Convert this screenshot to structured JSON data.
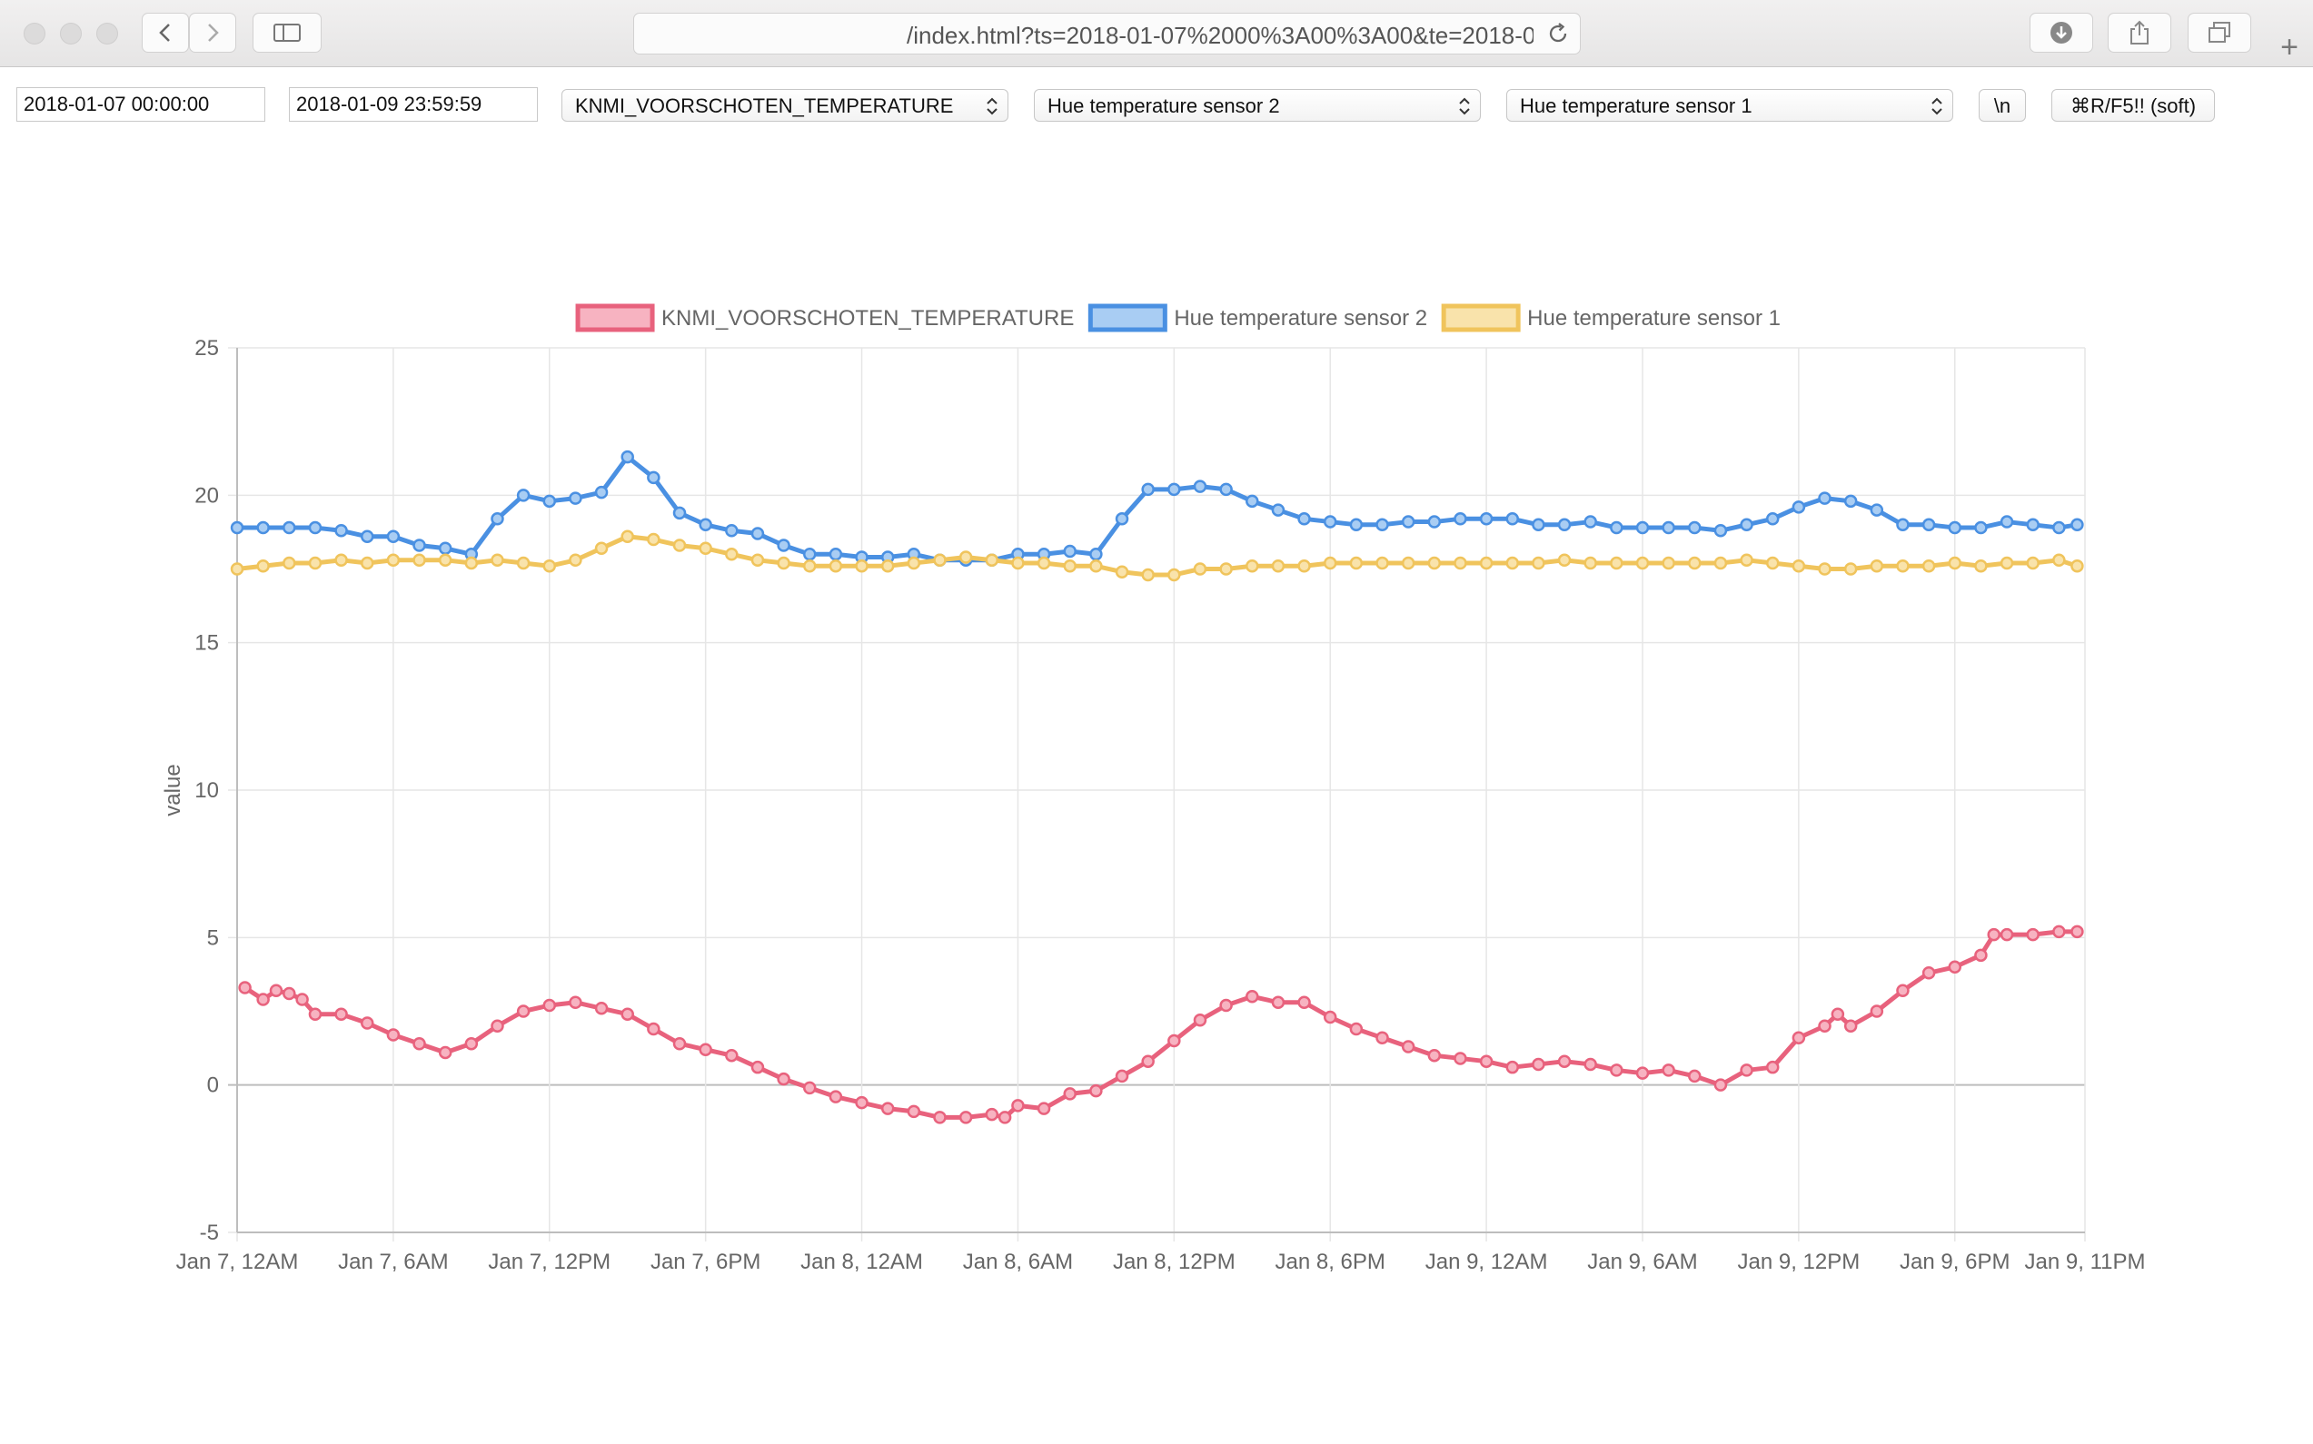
{
  "browser": {
    "url": "/index.html?ts=2018-01-07%2000%3A00%3A00&te=2018-0",
    "icons": [
      "back-icon",
      "forward-icon",
      "sidebar-icon",
      "reload-icon",
      "download-icon",
      "share-icon",
      "tabs-icon",
      "plus-icon"
    ],
    "new_tab_label": "+"
  },
  "controls": {
    "start_time": "2018-01-07 00:00:00",
    "end_time": "2018-01-09 23:59:59",
    "select1": "KNMI_VOORSCHOTEN_TEMPERATURE",
    "select2": "Hue temperature sensor 2",
    "select3": "Hue temperature sensor 1",
    "newline_button": "\\n",
    "refresh_button": "⌘R/F5!! (soft)"
  },
  "chart_data": {
    "type": "line",
    "title": "",
    "xlabel": "",
    "ylabel": "value",
    "ylim": [
      -5,
      25
    ],
    "xlim_hours": [
      0,
      71
    ],
    "grid": true,
    "legend_position": "top",
    "y_ticks": [
      "25",
      "20",
      "15",
      "10",
      "5",
      "0",
      "-5"
    ],
    "x_ticks": [
      {
        "hour": 0,
        "label": "Jan 7, 12AM"
      },
      {
        "hour": 6,
        "label": "Jan 7, 6AM"
      },
      {
        "hour": 12,
        "label": "Jan 7, 12PM"
      },
      {
        "hour": 18,
        "label": "Jan 7, 6PM"
      },
      {
        "hour": 24,
        "label": "Jan 8, 12AM"
      },
      {
        "hour": 30,
        "label": "Jan 8, 6AM"
      },
      {
        "hour": 36,
        "label": "Jan 8, 12PM"
      },
      {
        "hour": 42,
        "label": "Jan 8, 6PM"
      },
      {
        "hour": 48,
        "label": "Jan 9, 12AM"
      },
      {
        "hour": 54,
        "label": "Jan 9, 6AM"
      },
      {
        "hour": 60,
        "label": "Jan 9, 12PM"
      },
      {
        "hour": 66,
        "label": "Jan 9, 6PM"
      },
      {
        "hour": 71,
        "label": "Jan 9, 11PM"
      }
    ],
    "series": [
      {
        "name": "KNMI_VOORSCHOTEN_TEMPERATURE",
        "color": "#e8627d",
        "fill": "#f7b3c1",
        "points": [
          [
            0.3,
            3.3
          ],
          [
            1,
            2.9
          ],
          [
            1.5,
            3.2
          ],
          [
            2,
            3.1
          ],
          [
            2.5,
            2.9
          ],
          [
            3,
            2.4
          ],
          [
            4,
            2.4
          ],
          [
            5,
            2.1
          ],
          [
            6,
            1.7
          ],
          [
            7,
            1.4
          ],
          [
            8,
            1.1
          ],
          [
            9,
            1.4
          ],
          [
            10,
            2.0
          ],
          [
            11,
            2.5
          ],
          [
            12,
            2.7
          ],
          [
            13,
            2.8
          ],
          [
            14,
            2.6
          ],
          [
            15,
            2.4
          ],
          [
            16,
            1.9
          ],
          [
            17,
            1.4
          ],
          [
            18,
            1.2
          ],
          [
            19,
            1.0
          ],
          [
            20,
            0.6
          ],
          [
            21,
            0.2
          ],
          [
            22,
            -0.1
          ],
          [
            23,
            -0.4
          ],
          [
            24,
            -0.6
          ],
          [
            25,
            -0.8
          ],
          [
            26,
            -0.9
          ],
          [
            27,
            -1.1
          ],
          [
            28,
            -1.1
          ],
          [
            29,
            -1.0
          ],
          [
            29.5,
            -1.1
          ],
          [
            30,
            -0.7
          ],
          [
            31,
            -0.8
          ],
          [
            32,
            -0.3
          ],
          [
            33,
            -0.2
          ],
          [
            34,
            0.3
          ],
          [
            35,
            0.8
          ],
          [
            36,
            1.5
          ],
          [
            37,
            2.2
          ],
          [
            38,
            2.7
          ],
          [
            39,
            3.0
          ],
          [
            40,
            2.8
          ],
          [
            41,
            2.8
          ],
          [
            42,
            2.3
          ],
          [
            43,
            1.9
          ],
          [
            44,
            1.6
          ],
          [
            45,
            1.3
          ],
          [
            46,
            1.0
          ],
          [
            47,
            0.9
          ],
          [
            48,
            0.8
          ],
          [
            49,
            0.6
          ],
          [
            50,
            0.7
          ],
          [
            51,
            0.8
          ],
          [
            52,
            0.7
          ],
          [
            53,
            0.5
          ],
          [
            54,
            0.4
          ],
          [
            55,
            0.5
          ],
          [
            56,
            0.3
          ],
          [
            57,
            0.0
          ],
          [
            58,
            0.5
          ],
          [
            59,
            0.6
          ],
          [
            60,
            1.6
          ],
          [
            61,
            2.0
          ],
          [
            61.5,
            2.4
          ],
          [
            62,
            2.0
          ],
          [
            63,
            2.5
          ],
          [
            64,
            3.2
          ],
          [
            65,
            3.8
          ],
          [
            66,
            4.0
          ],
          [
            67,
            4.4
          ],
          [
            67.5,
            5.1
          ],
          [
            68,
            5.1
          ],
          [
            69,
            5.1
          ],
          [
            70,
            5.2
          ],
          [
            70.7,
            5.2
          ]
        ]
      },
      {
        "name": "Hue temperature sensor 2",
        "color": "#4a90e2",
        "fill": "#a9cdf3",
        "points": [
          [
            0,
            18.9
          ],
          [
            1,
            18.9
          ],
          [
            2,
            18.9
          ],
          [
            3,
            18.9
          ],
          [
            4,
            18.8
          ],
          [
            5,
            18.6
          ],
          [
            6,
            18.6
          ],
          [
            7,
            18.3
          ],
          [
            8,
            18.2
          ],
          [
            9,
            18.0
          ],
          [
            10,
            19.2
          ],
          [
            11,
            20.0
          ],
          [
            12,
            19.8
          ],
          [
            13,
            19.9
          ],
          [
            14,
            20.1
          ],
          [
            15,
            21.3
          ],
          [
            16,
            20.6
          ],
          [
            17,
            19.4
          ],
          [
            18,
            19.0
          ],
          [
            19,
            18.8
          ],
          [
            20,
            18.7
          ],
          [
            21,
            18.3
          ],
          [
            22,
            18.0
          ],
          [
            23,
            18.0
          ],
          [
            24,
            17.9
          ],
          [
            25,
            17.9
          ],
          [
            26,
            18.0
          ],
          [
            27,
            17.8
          ],
          [
            28,
            17.8
          ],
          [
            29,
            17.8
          ],
          [
            30,
            18.0
          ],
          [
            31,
            18.0
          ],
          [
            32,
            18.1
          ],
          [
            33,
            18.0
          ],
          [
            34,
            19.2
          ],
          [
            35,
            20.2
          ],
          [
            36,
            20.2
          ],
          [
            37,
            20.3
          ],
          [
            38,
            20.2
          ],
          [
            39,
            19.8
          ],
          [
            40,
            19.5
          ],
          [
            41,
            19.2
          ],
          [
            42,
            19.1
          ],
          [
            43,
            19.0
          ],
          [
            44,
            19.0
          ],
          [
            45,
            19.1
          ],
          [
            46,
            19.1
          ],
          [
            47,
            19.2
          ],
          [
            48,
            19.2
          ],
          [
            49,
            19.2
          ],
          [
            50,
            19.0
          ],
          [
            51,
            19.0
          ],
          [
            52,
            19.1
          ],
          [
            53,
            18.9
          ],
          [
            54,
            18.9
          ],
          [
            55,
            18.9
          ],
          [
            56,
            18.9
          ],
          [
            57,
            18.8
          ],
          [
            58,
            19.0
          ],
          [
            59,
            19.2
          ],
          [
            60,
            19.6
          ],
          [
            61,
            19.9
          ],
          [
            62,
            19.8
          ],
          [
            63,
            19.5
          ],
          [
            64,
            19.0
          ],
          [
            65,
            19.0
          ],
          [
            66,
            18.9
          ],
          [
            67,
            18.9
          ],
          [
            68,
            19.1
          ],
          [
            69,
            19.0
          ],
          [
            70,
            18.9
          ],
          [
            70.7,
            19.0
          ]
        ]
      },
      {
        "name": "Hue temperature sensor 1",
        "color": "#f0c45c",
        "fill": "#f9e3ab",
        "points": [
          [
            0,
            17.5
          ],
          [
            1,
            17.6
          ],
          [
            2,
            17.7
          ],
          [
            3,
            17.7
          ],
          [
            4,
            17.8
          ],
          [
            5,
            17.7
          ],
          [
            6,
            17.8
          ],
          [
            7,
            17.8
          ],
          [
            8,
            17.8
          ],
          [
            9,
            17.7
          ],
          [
            10,
            17.8
          ],
          [
            11,
            17.7
          ],
          [
            12,
            17.6
          ],
          [
            13,
            17.8
          ],
          [
            14,
            18.2
          ],
          [
            15,
            18.6
          ],
          [
            16,
            18.5
          ],
          [
            17,
            18.3
          ],
          [
            18,
            18.2
          ],
          [
            19,
            18.0
          ],
          [
            20,
            17.8
          ],
          [
            21,
            17.7
          ],
          [
            22,
            17.6
          ],
          [
            23,
            17.6
          ],
          [
            24,
            17.6
          ],
          [
            25,
            17.6
          ],
          [
            26,
            17.7
          ],
          [
            27,
            17.8
          ],
          [
            28,
            17.9
          ],
          [
            29,
            17.8
          ],
          [
            30,
            17.7
          ],
          [
            31,
            17.7
          ],
          [
            32,
            17.6
          ],
          [
            33,
            17.6
          ],
          [
            34,
            17.4
          ],
          [
            35,
            17.3
          ],
          [
            36,
            17.3
          ],
          [
            37,
            17.5
          ],
          [
            38,
            17.5
          ],
          [
            39,
            17.6
          ],
          [
            40,
            17.6
          ],
          [
            41,
            17.6
          ],
          [
            42,
            17.7
          ],
          [
            43,
            17.7
          ],
          [
            44,
            17.7
          ],
          [
            45,
            17.7
          ],
          [
            46,
            17.7
          ],
          [
            47,
            17.7
          ],
          [
            48,
            17.7
          ],
          [
            49,
            17.7
          ],
          [
            50,
            17.7
          ],
          [
            51,
            17.8
          ],
          [
            52,
            17.7
          ],
          [
            53,
            17.7
          ],
          [
            54,
            17.7
          ],
          [
            55,
            17.7
          ],
          [
            56,
            17.7
          ],
          [
            57,
            17.7
          ],
          [
            58,
            17.8
          ],
          [
            59,
            17.7
          ],
          [
            60,
            17.6
          ],
          [
            61,
            17.5
          ],
          [
            62,
            17.5
          ],
          [
            63,
            17.6
          ],
          [
            64,
            17.6
          ],
          [
            65,
            17.6
          ],
          [
            66,
            17.7
          ],
          [
            67,
            17.6
          ],
          [
            68,
            17.7
          ],
          [
            69,
            17.7
          ],
          [
            70,
            17.8
          ],
          [
            70.7,
            17.6
          ]
        ]
      }
    ]
  }
}
